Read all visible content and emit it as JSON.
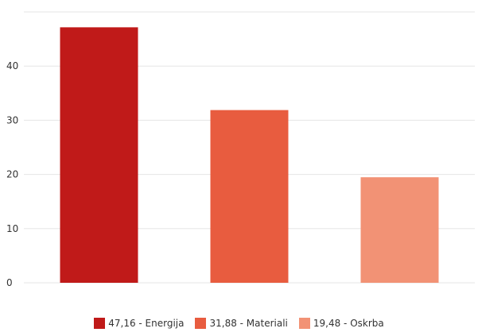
{
  "chart_data": {
    "type": "bar",
    "title": "",
    "xlabel": "",
    "ylabel": "",
    "categories": [
      "Energija",
      "Materiali",
      "Oskrba"
    ],
    "values": [
      47.16,
      31.88,
      19.48
    ],
    "colors": [
      "#c01a19",
      "#e85c3f",
      "#f29275"
    ],
    "ylim": [
      0,
      50
    ],
    "yticks": [
      "0",
      "10",
      "20",
      "30",
      "40"
    ],
    "grid": true,
    "legend_position": "bottom",
    "legend": [
      "47,16 - Energija",
      "31,88 - Materiali",
      "19,48 - Oskrba"
    ]
  }
}
